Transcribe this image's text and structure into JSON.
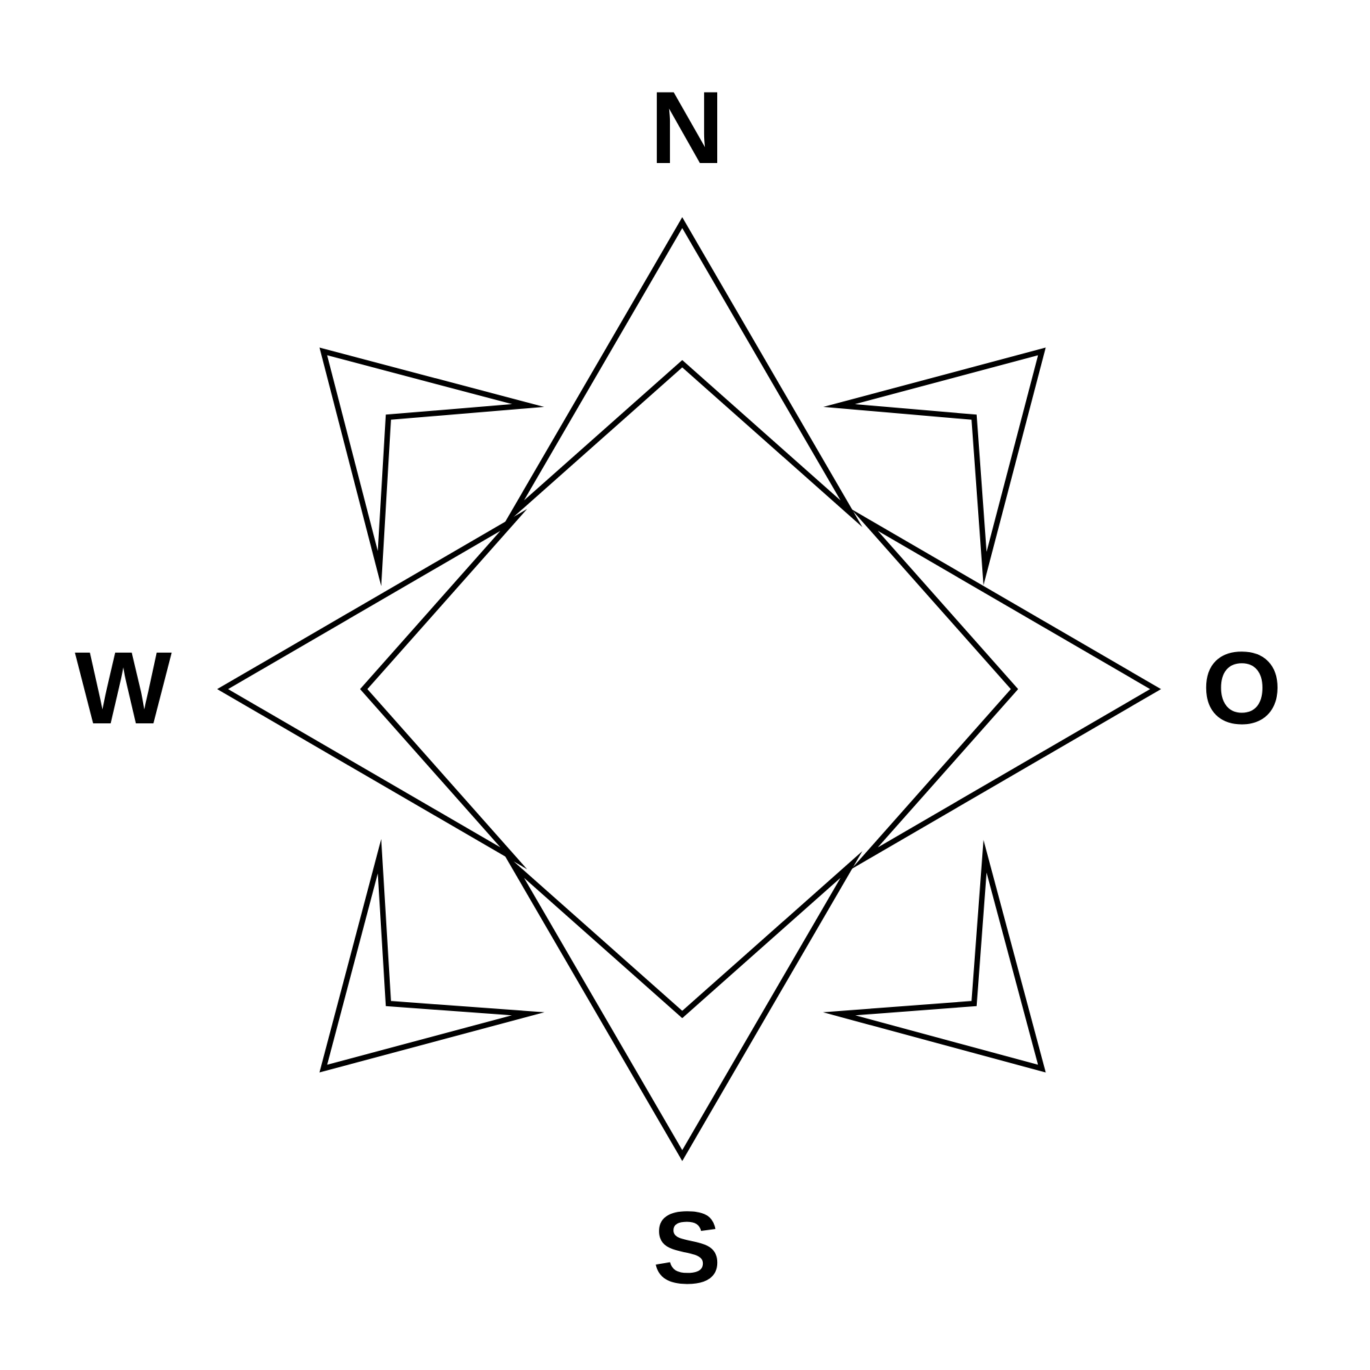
{
  "compass": {
    "labels": {
      "north": "N",
      "east": "O",
      "south": "S",
      "west": "W"
    },
    "colors": {
      "stroke": "#000000",
      "text": "#000000",
      "background": "#ffffff"
    }
  }
}
